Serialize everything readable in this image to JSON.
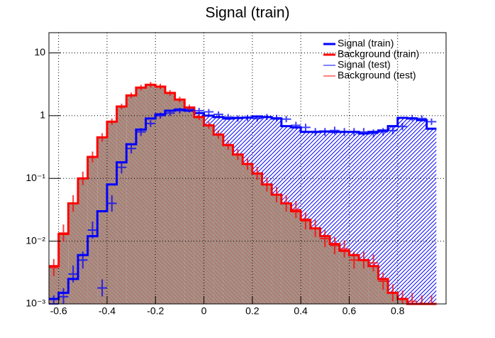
{
  "chart_data": {
    "type": "histogram",
    "title": "Signal (train)",
    "bins": [
      -0.64,
      -0.6,
      -0.56,
      -0.52,
      -0.48,
      -0.44,
      -0.4,
      -0.36,
      -0.32,
      -0.28,
      -0.24,
      -0.2,
      -0.16,
      -0.12,
      -0.08,
      -0.04,
      0,
      0.04,
      0.08,
      0.12,
      0.16,
      0.2,
      0.24,
      0.28,
      0.32,
      0.36,
      0.4,
      0.44,
      0.48,
      0.52,
      0.56,
      0.6,
      0.64,
      0.68,
      0.72,
      0.76,
      0.8,
      0.84,
      0.88,
      0.92,
      0.96,
      1.0
    ],
    "series": [
      {
        "name": "Signal (train)",
        "color": "#0000ff",
        "style": "filled",
        "values": [
          0.0012,
          0.0015,
          0.0025,
          0.006,
          0.012,
          0.03,
          0.08,
          0.18,
          0.35,
          0.6,
          0.9,
          1.05,
          1.2,
          1.25,
          1.2,
          1.1,
          1.0,
          0.95,
          0.9,
          0.92,
          0.93,
          0.97,
          0.95,
          0.9,
          0.68,
          0.65,
          0.55,
          0.55,
          0.56,
          0.55,
          0.55,
          0.55,
          0.52,
          0.55,
          0.58,
          0.68,
          0.92,
          0.9,
          0.85,
          0.62
        ]
      },
      {
        "name": "Background (train)",
        "color": "#ff0000",
        "style": "filled",
        "values": [
          0.004,
          0.013,
          0.04,
          0.1,
          0.22,
          0.45,
          0.8,
          1.4,
          2.1,
          2.8,
          3.1,
          2.9,
          2.3,
          1.8,
          1.35,
          0.95,
          0.7,
          0.5,
          0.34,
          0.24,
          0.17,
          0.12,
          0.08,
          0.055,
          0.04,
          0.03,
          0.022,
          0.016,
          0.012,
          0.009,
          0.007,
          0.006,
          0.005,
          0.004,
          0.0025,
          0.0015,
          0.0012,
          0.001,
          0.001,
          0.001
        ]
      },
      {
        "name": "Signal (test)",
        "color": "#0000ff",
        "style": "points",
        "values": [
          0.001,
          0.0013,
          0.003,
          0.005,
          0.015,
          0.0018,
          0.04,
          0.15,
          0.3,
          0.55,
          0.75,
          1.0,
          1.1,
          1.2,
          1.25,
          1.2,
          1.15,
          1.05,
          0.95,
          0.9,
          0.92,
          0.9,
          0.95,
          0.92,
          0.88,
          0.7,
          0.65,
          0.55,
          0.55,
          0.58,
          0.55,
          0.55,
          0.55,
          0.52,
          0.55,
          0.58,
          0.67,
          0.92,
          0.9,
          0.8
        ]
      },
      {
        "name": "Background (test)",
        "color": "#ff0000",
        "style": "points",
        "values": [
          0.0038,
          0.0135,
          0.04,
          0.1,
          0.22,
          0.45,
          0.8,
          1.4,
          2.1,
          2.8,
          3.1,
          2.9,
          2.3,
          1.8,
          1.35,
          0.95,
          0.7,
          0.5,
          0.34,
          0.24,
          0.17,
          0.12,
          0.08,
          0.055,
          0.04,
          0.032,
          0.021,
          0.016,
          0.011,
          0.0085,
          0.0075,
          0.005,
          0.005,
          0.0045,
          0.0023,
          0.0015,
          0.0012,
          0.0011,
          0.001,
          0.001
        ]
      }
    ],
    "xlim": [
      -0.64,
      1.0
    ],
    "xticks": [
      -0.6,
      -0.4,
      -0.2,
      0,
      0.2,
      0.4,
      0.6,
      0.8
    ],
    "ylim": [
      0.001,
      21
    ],
    "log_y": true,
    "yticks": [
      {
        "value": 0.001,
        "label": "10⁻³"
      },
      {
        "value": 0.01,
        "label": "10⁻²"
      },
      {
        "value": 0.1,
        "label": "10⁻¹"
      },
      1,
      10
    ],
    "grid": true,
    "legend": "top-right"
  }
}
